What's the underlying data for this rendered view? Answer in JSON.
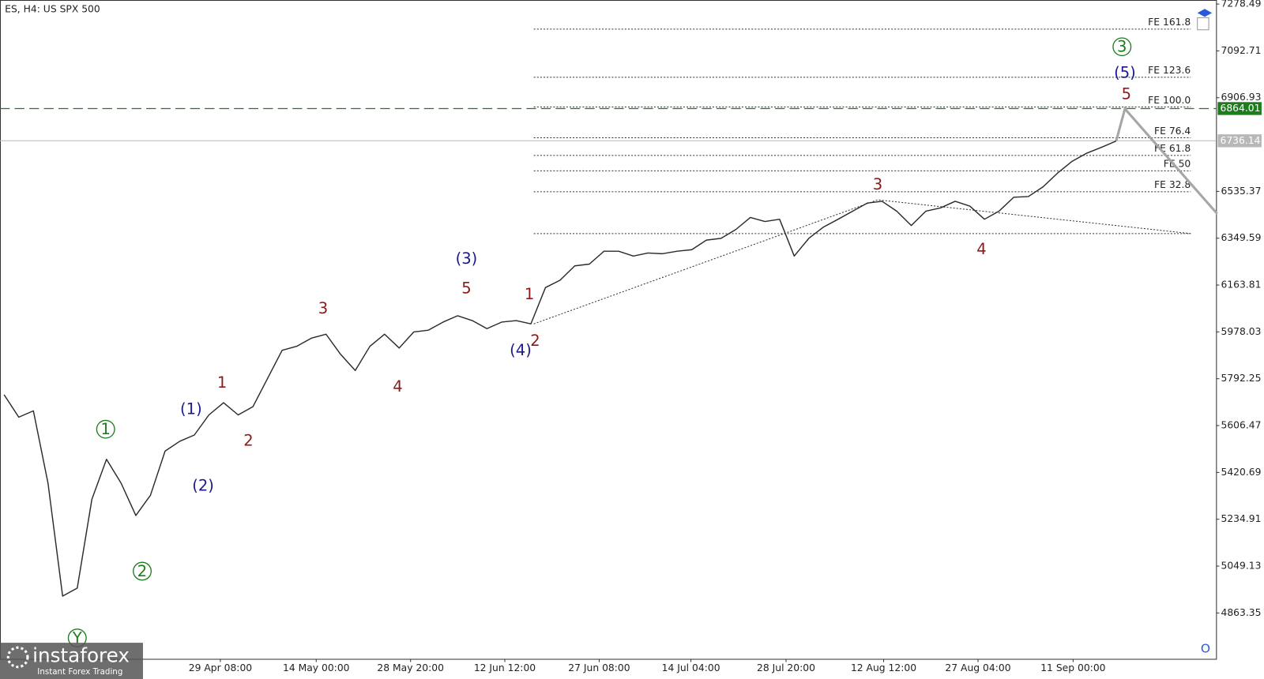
{
  "chart_data": {
    "type": "line",
    "title": "ES, H4:  US SPX 500",
    "color": "#2b2b2b",
    "values": [
      5729,
      5640,
      5665,
      5378,
      4930,
      4962,
      5314,
      5473,
      5378,
      5250,
      5330,
      5505,
      5544,
      5569,
      5649,
      5697,
      5649,
      5681,
      5793,
      5905,
      5921,
      5953,
      5969,
      5889,
      5825,
      5921,
      5969,
      5914,
      5978,
      5985,
      6017,
      6042,
      6023,
      5991,
      6017,
      6023,
      6010,
      6154,
      6183,
      6240,
      6247,
      6298,
      6298,
      6279,
      6291,
      6288,
      6298,
      6304,
      6342,
      6349,
      6384,
      6432,
      6416,
      6425,
      6279,
      6349,
      6394,
      6425,
      6457,
      6489,
      6496,
      6457,
      6400,
      6457,
      6470,
      6496,
      6477,
      6425,
      6457,
      6512,
      6515,
      6553,
      6608,
      6655,
      6687,
      6710,
      6735
    ],
    "ylim": [
      4681.2,
      7294.46
    ],
    "yticks": [
      7278.49,
      7092.71,
      6906.93,
      6535.37,
      6349.59,
      6163.81,
      5978.03,
      5792.25,
      5606.47,
      5420.69,
      5234.91,
      5049.13,
      4863.35
    ],
    "xticks": [
      {
        "value": 14.78,
        "label": "29 Apr 08:00"
      },
      {
        "value": 21.33,
        "label": "14 May 00:00"
      },
      {
        "value": 27.78,
        "label": "28 May 20:00"
      },
      {
        "value": 34.22,
        "label": "12 Jun 12:00"
      },
      {
        "value": 40.67,
        "label": "27 Jun 08:00"
      },
      {
        "value": 46.94,
        "label": "14 Jul 04:00"
      },
      {
        "value": 53.44,
        "label": "28 Jul 20:00"
      },
      {
        "value": 60.11,
        "label": "12 Aug 12:00"
      },
      {
        "value": 66.56,
        "label": "27 Aug 04:00"
      },
      {
        "value": 73.06,
        "label": "11 Sep 00:00"
      }
    ],
    "xlim": [
      -0.28,
      82.83
    ],
    "price_lines": [
      {
        "value": 6864.01,
        "label": "6864.01",
        "color": "#1e7b1e",
        "dashed": true
      },
      {
        "value": 6736.14,
        "label": "6736.14",
        "color": "#b8b8b8",
        "dashed": false
      }
    ],
    "fib_x": [
      36.2,
      81.1
    ],
    "fib_levels": [
      {
        "label": "FE 161.8",
        "value": 7179
      },
      {
        "label": "FE 123.6",
        "value": 6988
      },
      {
        "label": "FE 100.0",
        "value": 6870
      },
      {
        "label": "FE 76.4",
        "value": 6748
      },
      {
        "label": "FE 61.8",
        "value": 6678
      },
      {
        "label": "FE 50",
        "value": 6617
      },
      {
        "label": "FE 32.8",
        "value": 6534
      }
    ],
    "fib_base": 6368,
    "trend_lines": {
      "x": [
        36.2,
        59.7,
        81.1
      ],
      "values": [
        6010,
        6502,
        6368
      ]
    },
    "projection": {
      "x": [
        76,
        76.6,
        82.9
      ],
      "values": [
        6735,
        6863,
        6447
      ]
    },
    "wave_labels": [
      {
        "text": "Y",
        "x": 5,
        "y": 4764,
        "color": "#1e7b1e",
        "circle": true
      },
      {
        "text": "1",
        "x": 6.94,
        "y": 5592,
        "color": "#1e7b1e",
        "circle": true
      },
      {
        "text": "2",
        "x": 9.44,
        "y": 5029,
        "color": "#1e7b1e",
        "circle": true
      },
      {
        "text": "(1)",
        "x": 12.78,
        "y": 5672,
        "color": "#1a1a8c",
        "circle": false
      },
      {
        "text": "(2)",
        "x": 13.6,
        "y": 5368,
        "color": "#1a1a8c",
        "circle": false
      },
      {
        "text": "1",
        "x": 14.9,
        "y": 5777,
        "color": "#8b1a1a",
        "circle": false
      },
      {
        "text": "2",
        "x": 16.7,
        "y": 5547,
        "color": "#8b1a1a",
        "circle": false
      },
      {
        "text": "3",
        "x": 21.8,
        "y": 6071,
        "color": "#8b1a1a",
        "circle": false
      },
      {
        "text": "4",
        "x": 26.9,
        "y": 5761,
        "color": "#8b1a1a",
        "circle": false
      },
      {
        "text": "(3)",
        "x": 31.6,
        "y": 6269,
        "color": "#1a1a8c",
        "circle": false
      },
      {
        "text": "5",
        "x": 31.6,
        "y": 6151,
        "color": "#8b1a1a",
        "circle": false
      },
      {
        "text": "(4)",
        "x": 35.3,
        "y": 5905,
        "color": "#1a1a8c",
        "circle": false
      },
      {
        "text": "1",
        "x": 35.9,
        "y": 6128,
        "color": "#8b1a1a",
        "circle": false
      },
      {
        "text": "2",
        "x": 36.3,
        "y": 5943,
        "color": "#8b1a1a",
        "circle": false
      },
      {
        "text": "3",
        "x": 59.7,
        "y": 6563,
        "color": "#8b1a1a",
        "circle": false
      },
      {
        "text": "4",
        "x": 66.8,
        "y": 6307,
        "color": "#8b1a1a",
        "circle": false
      },
      {
        "text": "5",
        "x": 76.7,
        "y": 6921,
        "color": "#8b1a1a",
        "circle": false
      },
      {
        "text": "(5)",
        "x": 76.6,
        "y": 7007,
        "color": "#1a1a8c",
        "circle": false
      },
      {
        "text": "3",
        "x": 76.4,
        "y": 7109,
        "color": "#1e7b1e",
        "circle": true
      }
    ]
  },
  "logo": {
    "name": "instaforex",
    "tagline": "Instant Forex Trading"
  }
}
